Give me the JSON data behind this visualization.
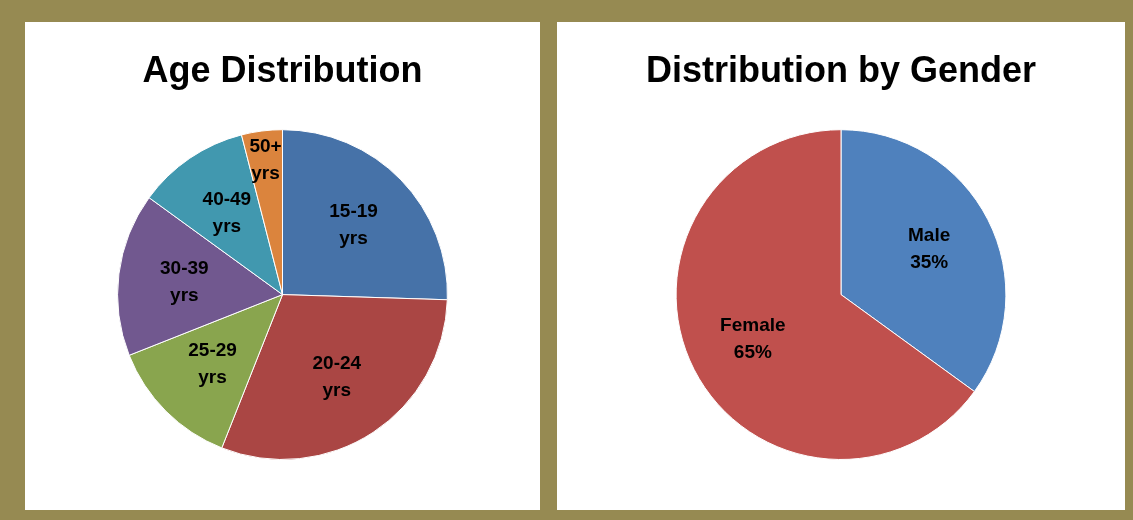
{
  "chart_data": [
    {
      "type": "pie",
      "title": "Age Distribution",
      "categories": [
        "15-19 yrs",
        "20-24 yrs",
        "25-29 yrs",
        "30-39 yrs",
        "40-49 yrs",
        "50+ yrs"
      ],
      "values": [
        25.5,
        30.5,
        13,
        16,
        11,
        4
      ],
      "colors": [
        "#4672a8",
        "#aa4644",
        "#89a54e",
        "#71588f",
        "#4198af",
        "#db843d"
      ],
      "legend": false
    },
    {
      "type": "pie",
      "title": "Distribution by Gender",
      "categories": [
        "Male",
        "Female"
      ],
      "values": [
        35,
        65
      ],
      "colors": [
        "#4f81bd",
        "#c0504d"
      ],
      "legend": false,
      "value_labels": [
        "35%",
        "65%"
      ]
    }
  ]
}
